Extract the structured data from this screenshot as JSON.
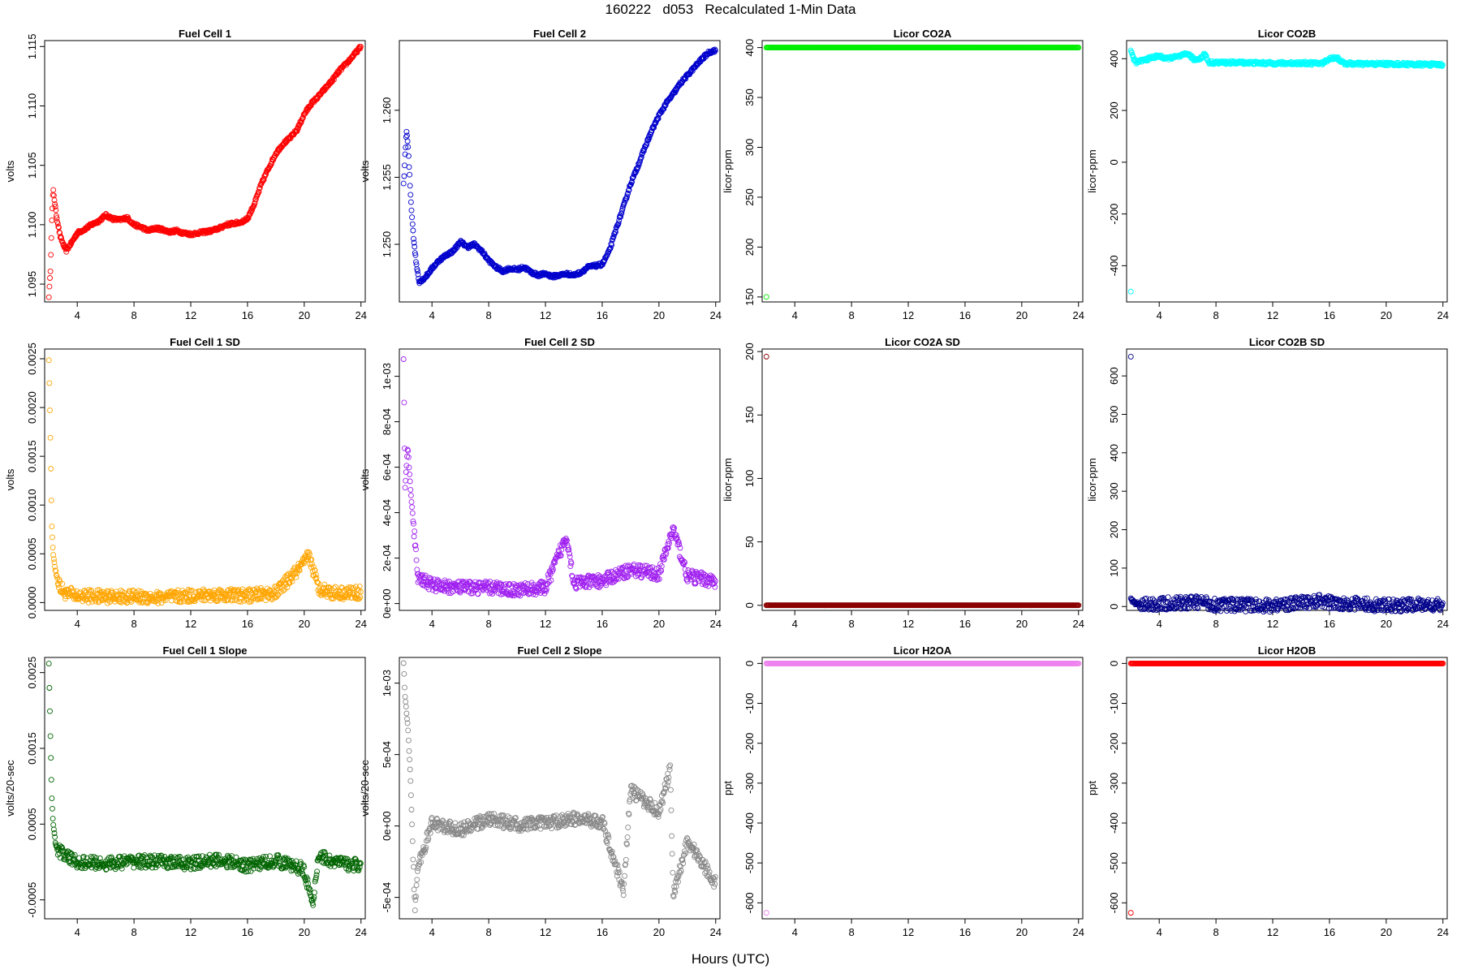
{
  "title": "160222   d053   Recalculated 1-Min Data",
  "xlabel": "Hours (UTC)",
  "chart_data": [
    {
      "type": "scatter",
      "title": "Fuel Cell 1",
      "ylabel": "volts",
      "color": "#ff0000",
      "xlim": [
        1.7,
        24.3
      ],
      "ylim": [
        1.0935,
        1.1155
      ],
      "xticks": [
        4,
        8,
        12,
        16,
        20,
        24
      ],
      "xticklabels": [
        "4",
        "8",
        "12",
        "16",
        "20",
        "24"
      ],
      "yticks": [
        1.095,
        1.1,
        1.105,
        1.11,
        1.115
      ],
      "yticklabels": [
        "1.095",
        "1.100",
        "1.105",
        "1.110",
        "1.115"
      ],
      "series": [
        {
          "x": [
            2.0,
            2.1,
            2.2,
            2.3,
            2.5,
            2.8,
            3.2,
            3.6,
            4.0,
            4.5,
            5.0,
            5.5,
            6.0,
            6.5,
            7.0,
            7.5,
            8.0,
            8.5,
            9.0,
            9.5,
            10.0,
            10.5,
            11.0,
            11.5,
            12.0,
            12.5,
            13.0,
            13.5,
            14.0,
            14.5,
            15.0,
            15.5,
            16.0,
            16.5,
            17.0,
            17.5,
            18.0,
            18.5,
            19.0,
            19.5,
            20.0,
            20.5,
            21.0,
            21.5,
            22.0,
            22.5,
            23.0,
            23.5,
            24.0
          ],
          "y": [
            1.094,
            1.096,
            1.1,
            1.103,
            1.101,
            1.099,
            1.0978,
            1.0985,
            1.0993,
            1.0996,
            1.1,
            1.1003,
            1.1008,
            1.1005,
            1.1004,
            1.1006,
            1.1,
            1.0998,
            1.0995,
            1.0997,
            1.0996,
            1.0994,
            1.0995,
            1.0993,
            1.0992,
            1.0993,
            1.0994,
            1.0995,
            1.0997,
            1.1,
            1.1001,
            1.1002,
            1.1005,
            1.1018,
            1.1035,
            1.1048,
            1.106,
            1.1068,
            1.1073,
            1.108,
            1.1093,
            1.1102,
            1.1108,
            1.1115,
            1.1122,
            1.113,
            1.1136,
            1.1143,
            1.115
          ]
        }
      ]
    },
    {
      "type": "scatter",
      "title": "Fuel Cell 2",
      "ylabel": "volts",
      "color": "#0000cd",
      "xlim": [
        1.7,
        24.3
      ],
      "ylim": [
        1.2457,
        1.2652
      ],
      "xticks": [
        4,
        8,
        12,
        16,
        20,
        24
      ],
      "xticklabels": [
        "4",
        "8",
        "12",
        "16",
        "20",
        "24"
      ],
      "yticks": [
        1.25,
        1.255,
        1.26
      ],
      "yticklabels": [
        "1.250",
        "1.255",
        "1.260"
      ],
      "series": [
        {
          "x": [
            2.0,
            2.1,
            2.2,
            2.3,
            2.5,
            2.7,
            2.9,
            3.1,
            3.5,
            4.0,
            4.5,
            5.0,
            5.5,
            6.0,
            6.5,
            7.0,
            7.5,
            8.0,
            8.5,
            9.0,
            9.5,
            10.0,
            10.5,
            11.0,
            11.5,
            12.0,
            12.5,
            13.0,
            13.5,
            14.0,
            14.5,
            15.0,
            15.5,
            16.0,
            16.5,
            17.0,
            17.5,
            18.0,
            18.5,
            19.0,
            19.5,
            20.0,
            20.5,
            21.0,
            21.5,
            22.0,
            22.5,
            23.0,
            23.5,
            24.0
          ],
          "y": [
            1.2545,
            1.2565,
            1.2585,
            1.2575,
            1.2535,
            1.2505,
            1.2485,
            1.2472,
            1.2475,
            1.2482,
            1.2488,
            1.2492,
            1.2495,
            1.2502,
            1.2498,
            1.25,
            1.2495,
            1.2488,
            1.2483,
            1.248,
            1.2482,
            1.2481,
            1.2483,
            1.2479,
            1.2477,
            1.2478,
            1.2476,
            1.2477,
            1.2478,
            1.2477,
            1.2479,
            1.2483,
            1.2484,
            1.2485,
            1.2495,
            1.2512,
            1.2528,
            1.2545,
            1.2558,
            1.2572,
            1.2585,
            1.2596,
            1.2605,
            1.2612,
            1.262,
            1.2626,
            1.2632,
            1.2638,
            1.2643,
            1.2645
          ]
        }
      ]
    },
    {
      "type": "scatter",
      "title": "Licor CO2A",
      "ylabel": "licor-ppm",
      "color": "#00ee00",
      "xlim": [
        1.7,
        24.3
      ],
      "ylim": [
        145,
        407
      ],
      "xticks": [
        4,
        8,
        12,
        16,
        20,
        24
      ],
      "xticklabels": [
        "4",
        "8",
        "12",
        "16",
        "20",
        "24"
      ],
      "yticks": [
        150,
        200,
        250,
        300,
        350,
        400
      ],
      "yticklabels": [
        "150",
        "200",
        "250",
        "300",
        "350",
        "400"
      ],
      "series": [
        {
          "x": [
            2.0,
            24.0
          ],
          "y": [
            400,
            400
          ]
        }
      ],
      "outliers": {
        "x": [
          2.0
        ],
        "y": [
          150
        ]
      }
    },
    {
      "type": "scatter",
      "title": "Licor CO2B",
      "ylabel": "licor-ppm",
      "color": "#00ffff",
      "xlim": [
        1.7,
        24.3
      ],
      "ylim": [
        -540,
        470
      ],
      "xticks": [
        4,
        8,
        12,
        16,
        20,
        24
      ],
      "xticklabels": [
        "4",
        "8",
        "12",
        "16",
        "20",
        "24"
      ],
      "yticks": [
        -400,
        -200,
        0,
        200,
        400
      ],
      "yticklabels": [
        "-400",
        "-200",
        "0",
        "200",
        "400"
      ],
      "series": [
        {
          "x": [
            2.0,
            2.2,
            2.4,
            2.6,
            3.0,
            3.5,
            4.0,
            4.5,
            5.0,
            5.5,
            6.0,
            6.5,
            7.0,
            7.2,
            7.5,
            8.0,
            10.0,
            12.0,
            14.0,
            15.5,
            16.0,
            16.5,
            17.0,
            18.0,
            20.0,
            22.0,
            24.0
          ],
          "y": [
            430,
            400,
            385,
            390,
            395,
            405,
            410,
            400,
            405,
            410,
            420,
            395,
            405,
            420,
            385,
            385,
            385,
            382,
            383,
            382,
            400,
            405,
            382,
            380,
            380,
            378,
            377
          ]
        }
      ],
      "outliers": {
        "x": [
          2.0
        ],
        "y": [
          -500
        ]
      }
    },
    {
      "type": "scatter",
      "title": "Fuel Cell 1 SD",
      "ylabel": "volts",
      "color": "#ffa500",
      "xlim": [
        1.7,
        24.3
      ],
      "ylim": [
        -8e-05,
        0.0026
      ],
      "xticks": [
        4,
        8,
        12,
        16,
        20,
        24
      ],
      "xticklabels": [
        "4",
        "8",
        "12",
        "16",
        "20",
        "24"
      ],
      "yticks": [
        0,
        0.0005,
        0.001,
        0.0015,
        0.002,
        0.0025
      ],
      "yticklabels": [
        "0.0000",
        "0.0005",
        "0.0010",
        "0.0015",
        "0.0020",
        "0.0025"
      ],
      "series": [
        {
          "x": [
            2.0,
            2.1,
            2.2,
            2.3,
            2.5,
            2.8,
            3.2,
            4.0,
            6.0,
            8.0,
            10.0,
            12.0,
            14.0,
            16.0,
            18.0,
            20.0,
            20.3,
            21.0,
            22.0,
            24.0
          ],
          "y": [
            0.0025,
            0.00175,
            0.0008,
            0.0005,
            0.0003,
            0.00015,
            0.0001,
            7e-05,
            6e-05,
            6e-05,
            5e-05,
            7e-05,
            8e-05,
            7e-05,
            0.0001,
            0.0004,
            0.0005,
            0.00015,
            0.0001,
            0.0001
          ]
        }
      ]
    },
    {
      "type": "scatter",
      "title": "Fuel Cell 2 SD",
      "ylabel": "volts",
      "color": "#a020f0",
      "xlim": [
        1.7,
        24.3
      ],
      "ylim": [
        -3e-05,
        0.00112
      ],
      "xticks": [
        4,
        8,
        12,
        16,
        20,
        24
      ],
      "xticklabels": [
        "4",
        "8",
        "12",
        "16",
        "20",
        "24"
      ],
      "yticks": [
        0,
        0.0002,
        0.0004,
        0.0006,
        0.0008,
        0.001
      ],
      "yticklabels": [
        "0e+00",
        "2e-04",
        "4e-04",
        "6e-04",
        "8e-04",
        "1e-03"
      ],
      "series": [
        {
          "x": [
            2.0,
            2.1,
            2.3,
            2.5,
            3.0,
            4.0,
            6.0,
            8.0,
            10.0,
            12.0,
            13.5,
            14.0,
            16.0,
            18.0,
            20.0,
            21.0,
            22.0,
            24.0
          ],
          "y": [
            0.00108,
            0.00051,
            0.00069,
            0.00049,
            0.00012,
            8e-05,
            7e-05,
            7e-05,
            6e-05,
            7e-05,
            0.0003,
            9e-05,
            0.0001,
            0.00015,
            0.00013,
            0.00033,
            0.00012,
            0.0001
          ]
        }
      ]
    },
    {
      "type": "scatter",
      "title": "Licor CO2A SD",
      "ylabel": "licor-ppm",
      "color": "#8b0000",
      "xlim": [
        1.7,
        24.3
      ],
      "ylim": [
        -4,
        202
      ],
      "xticks": [
        4,
        8,
        12,
        16,
        20,
        24
      ],
      "xticklabels": [
        "4",
        "8",
        "12",
        "16",
        "20",
        "24"
      ],
      "yticks": [
        0,
        50,
        100,
        150,
        200
      ],
      "yticklabels": [
        "0",
        "50",
        "100",
        "150",
        "200"
      ],
      "series": [
        {
          "x": [
            2.0,
            24.0
          ],
          "y": [
            0,
            0
          ]
        }
      ],
      "outliers": {
        "x": [
          2.0
        ],
        "y": [
          196
        ]
      }
    },
    {
      "type": "scatter",
      "title": "Licor CO2B SD",
      "ylabel": "licor-ppm",
      "color": "#00008b",
      "xlim": [
        1.7,
        24.3
      ],
      "ylim": [
        -10,
        670
      ],
      "xticks": [
        4,
        8,
        12,
        16,
        20,
        24
      ],
      "xticklabels": [
        "4",
        "8",
        "12",
        "16",
        "20",
        "24"
      ],
      "yticks": [
        0,
        100,
        200,
        300,
        400,
        500,
        600
      ],
      "yticklabels": [
        "0",
        "100",
        "200",
        "300",
        "400",
        "500",
        "600"
      ],
      "series": [
        {
          "x": [
            2.0,
            2.2,
            3.0,
            5.0,
            7.0,
            8.0,
            12.0,
            15.5,
            16.0,
            17.5,
            20.0,
            22.5,
            24.0
          ],
          "y": [
            20,
            10,
            5,
            8,
            12,
            5,
            3,
            15,
            10,
            8,
            2,
            5,
            2
          ]
        }
      ],
      "outliers": {
        "x": [
          2.0
        ],
        "y": [
          650
        ]
      }
    },
    {
      "type": "scatter",
      "title": "Fuel Cell 1 Slope",
      "ylabel": "volts/20-sec",
      "color": "#006400",
      "xlim": [
        1.7,
        24.3
      ],
      "ylim": [
        -0.00075,
        0.0027
      ],
      "xticks": [
        4,
        8,
        12,
        16,
        20,
        24
      ],
      "xticklabels": [
        "4",
        "8",
        "12",
        "16",
        "20",
        "24"
      ],
      "yticks": [
        -0.0005,
        0.0005,
        0.0015,
        0.0025
      ],
      "yticklabels": [
        "-0.0005",
        "0.0005",
        "0.0015",
        "0.0025"
      ],
      "series": [
        {
          "x": [
            2.0,
            2.1,
            2.2,
            2.3,
            2.5,
            3.0,
            4.0,
            6.0,
            8.0,
            10.0,
            12.0,
            14.0,
            16.0,
            18.0,
            20.0,
            20.6,
            21.0,
            22.0,
            24.0
          ],
          "y": [
            0.0026,
            0.0017,
            0.0009,
            0.0005,
            0.0002,
            0.0001,
            0,
            -2e-05,
            1e-05,
            0,
            -2e-05,
            3e-05,
            -5e-05,
            2e-05,
            -0.0001,
            -0.0006,
            0.0001,
            0,
            -5e-05
          ]
        }
      ]
    },
    {
      "type": "scatter",
      "title": "Fuel Cell 2 Slope",
      "ylabel": "volts/20-sec",
      "color": "#888888",
      "xlim": [
        1.7,
        24.3
      ],
      "ylim": [
        -0.00065,
        0.00118
      ],
      "xticks": [
        4,
        8,
        12,
        16,
        20,
        24
      ],
      "xticklabels": [
        "4",
        "8",
        "12",
        "16",
        "20",
        "24"
      ],
      "yticks": [
        -0.0005,
        0,
        0.0005,
        0.001
      ],
      "yticklabels": [
        "-5e-04",
        "0e+00",
        "5e-04",
        "1e-03"
      ],
      "series": [
        {
          "x": [
            2.0,
            2.1,
            2.3,
            2.5,
            2.8,
            3.0,
            4.0,
            6.0,
            8.0,
            10.0,
            12.0,
            14.0,
            16.0,
            17.5,
            18.0,
            20.0,
            20.8,
            21.0,
            22.0,
            24.0
          ],
          "y": [
            0.00114,
            0.0009,
            0.0007,
            0.0003,
            -0.0006,
            -0.0003,
            2e-05,
            -3e-05,
            5e-05,
            1e-05,
            2e-05,
            5e-05,
            3e-05,
            -0.00045,
            0.00025,
            0.0001,
            0.0004,
            -0.0005,
            -0.0001,
            -0.0004
          ]
        }
      ]
    },
    {
      "type": "scatter",
      "title": "Licor H2OA",
      "ylabel": "ppt",
      "color": "#ee82ee",
      "xlim": [
        1.7,
        24.3
      ],
      "ylim": [
        -640,
        15
      ],
      "xticks": [
        4,
        8,
        12,
        16,
        20,
        24
      ],
      "xticklabels": [
        "4",
        "8",
        "12",
        "16",
        "20",
        "24"
      ],
      "yticks": [
        -600,
        -500,
        -400,
        -300,
        -200,
        -100,
        0
      ],
      "yticklabels": [
        "-600",
        "-500",
        "-400",
        "-300",
        "-200",
        "-100",
        "0"
      ],
      "series": [
        {
          "x": [
            2.0,
            24.0
          ],
          "y": [
            0,
            0
          ]
        }
      ],
      "outliers": {
        "x": [
          2.0
        ],
        "y": [
          -625
        ]
      }
    },
    {
      "type": "scatter",
      "title": "Licor H2OB",
      "ylabel": "ppt",
      "color": "#ff0000",
      "xlim": [
        1.7,
        24.3
      ],
      "ylim": [
        -640,
        15
      ],
      "xticks": [
        4,
        8,
        12,
        16,
        20,
        24
      ],
      "xticklabels": [
        "4",
        "8",
        "12",
        "16",
        "20",
        "24"
      ],
      "yticks": [
        -600,
        -500,
        -400,
        -300,
        -200,
        -100,
        0
      ],
      "yticklabels": [
        "-600",
        "-500",
        "-400",
        "-300",
        "-200",
        "-100",
        "0"
      ],
      "series": [
        {
          "x": [
            2.0,
            24.0
          ],
          "y": [
            0,
            0
          ]
        }
      ],
      "outliers": {
        "x": [
          2.0
        ],
        "y": [
          -625
        ]
      }
    }
  ]
}
